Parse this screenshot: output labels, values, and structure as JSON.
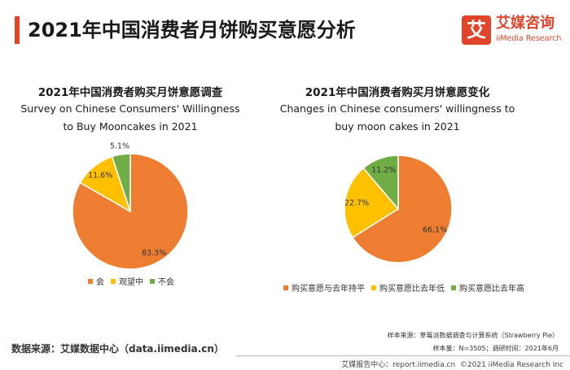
{
  "header": {
    "title": "2021年中国消费者月饼购买意愿分析",
    "logo_mark": "艾",
    "logo_cn": "艾媒咨询",
    "logo_en": "iiMedia Research",
    "accent_color": "#e0452b"
  },
  "source_text": "数据来源：艾媒数据中心（data.iimedia.cn）",
  "sample_source": "样本来源：草莓派数据调查与计算系统（Strawberry Pie）",
  "sample_info": "样本量：N=3505；调研时间：2021年6月",
  "footer": {
    "report_center": "艾媒报告中心：report.iimedia.cn",
    "copyright": "©2021  iiMedia Research  Inc"
  },
  "chart_data": [
    {
      "type": "pie",
      "title": "2021年中国消费者购买月饼意愿调查",
      "subtitle": "Survey on Chinese Consumers' Willingness to Buy Mooncakes in 2021",
      "categories": [
        "会",
        "观望中",
        "不会"
      ],
      "values": [
        83.3,
        11.6,
        5.1
      ],
      "labels": [
        "83.3%",
        "11.6%",
        "5.1%"
      ],
      "colors": [
        "#ed7d31",
        "#ffc000",
        "#70ad47"
      ],
      "legend_position": "bottom"
    },
    {
      "type": "pie",
      "title": "2021年中国消费者购买月饼意愿变化",
      "subtitle": "Changes in Chinese consumers' willingness to buy moon cakes in 2021",
      "categories": [
        "购买意愿与去年持平",
        "购买意愿比去年低",
        "购买意愿比去年高"
      ],
      "values": [
        66.1,
        22.7,
        11.2
      ],
      "labels": [
        "66.1%",
        "22.7%",
        "11.2%"
      ],
      "colors": [
        "#ed7d31",
        "#ffc000",
        "#70ad47"
      ],
      "legend_position": "bottom"
    }
  ]
}
